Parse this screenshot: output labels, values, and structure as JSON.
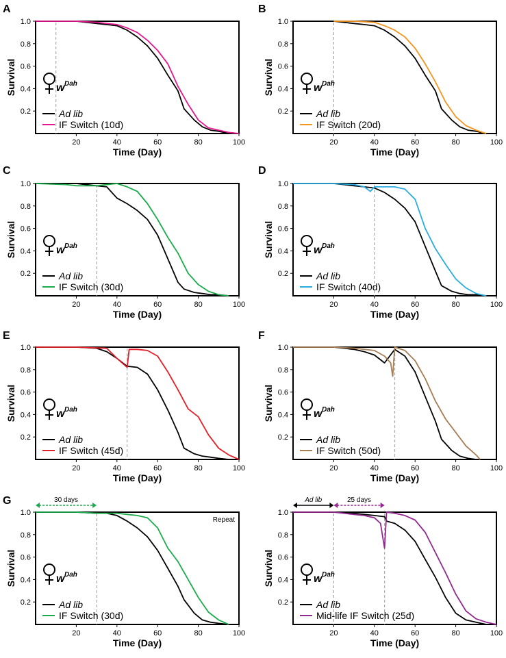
{
  "figure": {
    "x_label": "Time (Day)",
    "y_label": "Survival",
    "genotype": "w",
    "genotype_sup": "Dah",
    "control_label": "Ad lib",
    "colors": {
      "ad_lib": "#000000",
      "switch_10": "#e5168f",
      "switch_20": "#f7941d",
      "switch_30": "#1aab4b",
      "switch_40": "#29abe2",
      "switch_45": "#e41e26",
      "switch_50": "#a67c52",
      "midlife": "#92278f",
      "guide": "#aaaaaa"
    }
  },
  "chart_data": [
    {
      "panel": "A",
      "type": "line",
      "switch_day": 10,
      "x_ticks": [
        20,
        40,
        60,
        80,
        100
      ],
      "y_ticks": [
        0.2,
        0.4,
        0.6,
        0.8,
        1.0
      ],
      "xlim": [
        0,
        100
      ],
      "ylim": [
        0,
        1.0
      ],
      "series": [
        {
          "name": "Ad lib",
          "color": "#000000",
          "x": [
            0,
            20,
            30,
            35,
            40,
            45,
            50,
            55,
            60,
            65,
            70,
            73,
            78,
            82,
            86,
            90,
            95
          ],
          "y": [
            1.0,
            1.0,
            0.98,
            0.97,
            0.96,
            0.92,
            0.86,
            0.78,
            0.67,
            0.52,
            0.38,
            0.22,
            0.12,
            0.06,
            0.03,
            0.02,
            0.0
          ]
        },
        {
          "name": "IF Switch (10d)",
          "color": "#e5168f",
          "x": [
            0,
            10,
            20,
            30,
            40,
            45,
            50,
            55,
            60,
            65,
            70,
            75,
            80,
            85,
            90,
            95,
            100
          ],
          "y": [
            1.0,
            1.0,
            1.0,
            0.99,
            0.97,
            0.94,
            0.9,
            0.83,
            0.74,
            0.62,
            0.42,
            0.26,
            0.12,
            0.05,
            0.03,
            0.01,
            0.0
          ]
        }
      ]
    },
    {
      "panel": "B",
      "type": "line",
      "switch_day": 20,
      "x_ticks": [
        20,
        40,
        60,
        80,
        100
      ],
      "y_ticks": [
        0.2,
        0.4,
        0.6,
        0.8,
        1.0
      ],
      "xlim": [
        0,
        100
      ],
      "ylim": [
        0,
        1.0
      ],
      "series": [
        {
          "name": "Ad lib",
          "color": "#000000",
          "x": [
            0,
            20,
            30,
            35,
            40,
            45,
            50,
            55,
            60,
            65,
            70,
            73,
            78,
            82,
            86,
            90,
            95
          ],
          "y": [
            1.0,
            1.0,
            0.98,
            0.97,
            0.96,
            0.92,
            0.86,
            0.78,
            0.67,
            0.52,
            0.38,
            0.22,
            0.12,
            0.06,
            0.03,
            0.02,
            0.0
          ]
        },
        {
          "name": "IF Switch (20d)",
          "color": "#f7941d",
          "x": [
            20,
            30,
            40,
            45,
            50,
            55,
            60,
            65,
            70,
            75,
            80,
            85,
            90,
            95
          ],
          "y": [
            1.0,
            1.0,
            0.99,
            0.96,
            0.92,
            0.86,
            0.76,
            0.62,
            0.46,
            0.28,
            0.15,
            0.07,
            0.03,
            0.0
          ]
        }
      ]
    },
    {
      "panel": "C",
      "type": "line",
      "switch_day": 30,
      "x_ticks": [
        20,
        40,
        60,
        80,
        100
      ],
      "y_ticks": [
        0.2,
        0.4,
        0.6,
        0.8,
        1.0
      ],
      "xlim": [
        0,
        100
      ],
      "ylim": [
        0,
        1.0
      ],
      "series": [
        {
          "name": "Ad lib",
          "color": "#000000",
          "x": [
            0,
            20,
            30,
            35,
            40,
            45,
            50,
            55,
            60,
            65,
            70,
            73,
            78,
            82,
            86,
            90,
            95
          ],
          "y": [
            1.0,
            1.0,
            0.98,
            0.97,
            0.87,
            0.82,
            0.76,
            0.68,
            0.54,
            0.33,
            0.12,
            0.06,
            0.03,
            0.02,
            0.01,
            0.01,
            0.0
          ]
        },
        {
          "name": "IF Switch (30d)",
          "color": "#1aab4b",
          "x": [
            0,
            15,
            20,
            30,
            40,
            45,
            50,
            55,
            60,
            65,
            70,
            75,
            80,
            85,
            90,
            95
          ],
          "y": [
            1.0,
            0.99,
            0.98,
            0.98,
            1.0,
            0.97,
            0.93,
            0.82,
            0.68,
            0.52,
            0.38,
            0.2,
            0.1,
            0.04,
            0.01,
            0.0
          ]
        }
      ]
    },
    {
      "panel": "D",
      "type": "line",
      "switch_day": 40,
      "x_ticks": [
        20,
        40,
        60,
        80,
        100
      ],
      "y_ticks": [
        0.2,
        0.4,
        0.6,
        0.8,
        1.0
      ],
      "xlim": [
        0,
        100
      ],
      "ylim": [
        0,
        1.0
      ],
      "series": [
        {
          "name": "Ad lib",
          "color": "#000000",
          "x": [
            0,
            20,
            30,
            35,
            40,
            45,
            50,
            55,
            60,
            65,
            70,
            73,
            78,
            82,
            86,
            90,
            95
          ],
          "y": [
            1.0,
            1.0,
            0.98,
            0.97,
            0.96,
            0.92,
            0.86,
            0.78,
            0.66,
            0.44,
            0.22,
            0.09,
            0.04,
            0.02,
            0.01,
            0.01,
            0.0
          ]
        },
        {
          "name": "IF Switch (40d)",
          "color": "#29abe2",
          "x": [
            0,
            20,
            30,
            35,
            38,
            40,
            45,
            50,
            55,
            60,
            65,
            70,
            75,
            80,
            85,
            90,
            95
          ],
          "y": [
            1.0,
            1.0,
            0.99,
            0.97,
            0.93,
            0.97,
            0.97,
            0.97,
            0.95,
            0.86,
            0.6,
            0.42,
            0.28,
            0.15,
            0.07,
            0.02,
            0.0
          ]
        }
      ]
    },
    {
      "panel": "E",
      "type": "line",
      "switch_day": 45,
      "x_ticks": [
        20,
        40,
        60,
        80,
        100
      ],
      "y_ticks": [
        0.2,
        0.4,
        0.6,
        0.8,
        1.0
      ],
      "xlim": [
        0,
        100
      ],
      "ylim": [
        0,
        1.0
      ],
      "series": [
        {
          "name": "Ad lib",
          "color": "#000000",
          "x": [
            0,
            20,
            30,
            35,
            40,
            45,
            50,
            55,
            60,
            65,
            70,
            73,
            78,
            82,
            86,
            90,
            95
          ],
          "y": [
            1.0,
            1.0,
            0.99,
            0.96,
            0.9,
            0.83,
            0.82,
            0.76,
            0.62,
            0.44,
            0.24,
            0.1,
            0.05,
            0.03,
            0.02,
            0.01,
            0.0
          ]
        },
        {
          "name": "IF Switch (45d)",
          "color": "#e41e26",
          "x": [
            0,
            20,
            35,
            40,
            45,
            46,
            50,
            55,
            60,
            65,
            70,
            75,
            80,
            85,
            90,
            95,
            100
          ],
          "y": [
            1.0,
            1.0,
            0.99,
            0.9,
            0.82,
            0.98,
            0.98,
            0.97,
            0.92,
            0.78,
            0.62,
            0.45,
            0.38,
            0.22,
            0.1,
            0.04,
            0.0
          ]
        }
      ]
    },
    {
      "panel": "F",
      "type": "line",
      "switch_day": 50,
      "x_ticks": [
        20,
        40,
        60,
        80,
        100
      ],
      "y_ticks": [
        0.2,
        0.4,
        0.6,
        0.8,
        1.0
      ],
      "xlim": [
        0,
        100
      ],
      "ylim": [
        0,
        1.0
      ],
      "series": [
        {
          "name": "Ad lib",
          "color": "#000000",
          "x": [
            0,
            20,
            30,
            35,
            40,
            45,
            50,
            55,
            60,
            65,
            70,
            73,
            78,
            82,
            86,
            90
          ],
          "y": [
            1.0,
            1.0,
            0.98,
            0.96,
            0.93,
            0.86,
            0.98,
            0.92,
            0.78,
            0.56,
            0.34,
            0.18,
            0.08,
            0.03,
            0.01,
            0.0
          ]
        },
        {
          "name": "IF Switch (50d)",
          "color": "#a67c52",
          "x": [
            0,
            20,
            30,
            40,
            45,
            48,
            49,
            50,
            55,
            60,
            65,
            70,
            75,
            80,
            85,
            90,
            92
          ],
          "y": [
            1.0,
            1.0,
            0.99,
            0.97,
            0.92,
            0.86,
            0.74,
            1.0,
            0.97,
            0.88,
            0.72,
            0.52,
            0.36,
            0.24,
            0.12,
            0.04,
            0.0
          ]
        }
      ]
    },
    {
      "panel": "G",
      "type": "line",
      "switch_day": 30,
      "note": "Repeat",
      "bracket_label": "30 days",
      "x_ticks": [
        20,
        40,
        60,
        80,
        100
      ],
      "y_ticks": [
        0.2,
        0.4,
        0.6,
        0.8,
        1.0
      ],
      "xlim": [
        0,
        100
      ],
      "ylim": [
        0,
        1.0
      ],
      "series": [
        {
          "name": "Ad lib",
          "color": "#000000",
          "x": [
            0,
            20,
            30,
            35,
            40,
            45,
            50,
            55,
            60,
            65,
            70,
            73,
            78,
            82,
            86,
            90,
            95
          ],
          "y": [
            1.0,
            1.0,
            0.99,
            0.99,
            0.97,
            0.92,
            0.86,
            0.78,
            0.66,
            0.5,
            0.34,
            0.22,
            0.1,
            0.04,
            0.02,
            0.01,
            0.0
          ]
        },
        {
          "name": "IF Switch (30d)",
          "color": "#1aab4b",
          "x": [
            0,
            20,
            30,
            40,
            45,
            50,
            55,
            60,
            65,
            70,
            75,
            80,
            85,
            90,
            95
          ],
          "y": [
            1.0,
            1.0,
            0.99,
            0.99,
            0.98,
            0.97,
            0.95,
            0.86,
            0.68,
            0.56,
            0.4,
            0.24,
            0.11,
            0.04,
            0.0
          ]
        }
      ]
    },
    {
      "panel": "",
      "type": "line",
      "switch_day": 20,
      "switch_day_2": 45,
      "bracket_label_1": "Ad lib",
      "bracket_label_2": "25 days",
      "x_ticks": [
        20,
        40,
        60,
        80,
        100
      ],
      "y_ticks": [
        0.2,
        0.4,
        0.6,
        0.8,
        1.0
      ],
      "xlim": [
        0,
        100
      ],
      "ylim": [
        0,
        1.0
      ],
      "series": [
        {
          "name": "Ad lib",
          "color": "#000000",
          "x": [
            0,
            20,
            30,
            35,
            40,
            45,
            46,
            50,
            55,
            60,
            65,
            70,
            75,
            80,
            85,
            90,
            95
          ],
          "y": [
            1.0,
            1.0,
            0.99,
            0.98,
            0.97,
            0.96,
            0.92,
            0.9,
            0.84,
            0.74,
            0.58,
            0.42,
            0.24,
            0.1,
            0.04,
            0.02,
            0.0
          ]
        },
        {
          "name": "Mid-life IF Switch (25d)",
          "color": "#92278f",
          "x": [
            0,
            20,
            30,
            35,
            40,
            43,
            45,
            46,
            50,
            55,
            60,
            65,
            70,
            75,
            80,
            85,
            90,
            95,
            100
          ],
          "y": [
            1.0,
            1.0,
            0.98,
            0.97,
            0.95,
            0.9,
            0.68,
            1.0,
            0.99,
            0.97,
            0.93,
            0.82,
            0.64,
            0.46,
            0.27,
            0.12,
            0.05,
            0.02,
            0.0
          ]
        }
      ]
    }
  ]
}
